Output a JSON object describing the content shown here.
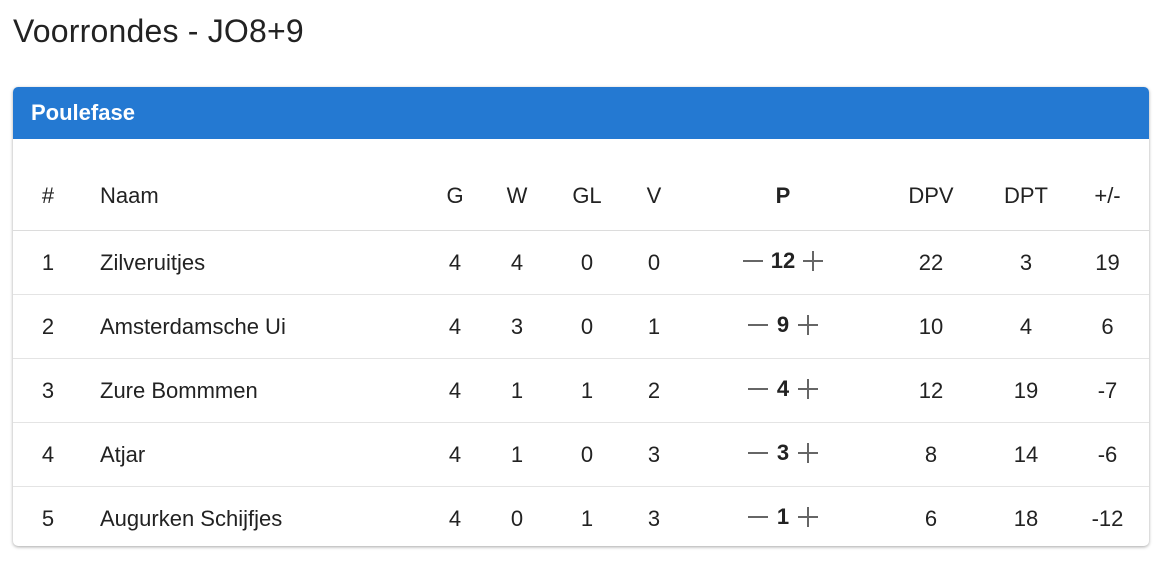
{
  "page": {
    "title": "Voorrondes - JO8+9"
  },
  "card": {
    "header": "Poulefase"
  },
  "table": {
    "headers": {
      "pos": "#",
      "name": "Naam",
      "g": "G",
      "w": "W",
      "gl": "GL",
      "v": "V",
      "p": "P",
      "dpv": "DPV",
      "dpt": "DPT",
      "diff": "+/-"
    },
    "rows": [
      {
        "pos": "1",
        "name": "Zilveruitjes",
        "g": "4",
        "w": "4",
        "gl": "0",
        "v": "0",
        "p": "12",
        "dpv": "22",
        "dpt": "3",
        "diff": "19"
      },
      {
        "pos": "2",
        "name": "Amsterdamsche Ui",
        "g": "4",
        "w": "3",
        "gl": "0",
        "v": "1",
        "p": "9",
        "dpv": "10",
        "dpt": "4",
        "diff": "6"
      },
      {
        "pos": "3",
        "name": "Zure Bommmen",
        "g": "4",
        "w": "1",
        "gl": "1",
        "v": "2",
        "p": "4",
        "dpv": "12",
        "dpt": "19",
        "diff": "-7"
      },
      {
        "pos": "4",
        "name": "Atjar",
        "g": "4",
        "w": "1",
        "gl": "0",
        "v": "3",
        "p": "3",
        "dpv": "8",
        "dpt": "14",
        "diff": "-6"
      },
      {
        "pos": "5",
        "name": "Augurken Schijfjes",
        "g": "4",
        "w": "0",
        "gl": "1",
        "v": "3",
        "p": "1",
        "dpv": "6",
        "dpt": "18",
        "diff": "-12"
      }
    ]
  },
  "icons": {
    "decrement": "minus-icon",
    "increment": "plus-icon"
  },
  "colors": {
    "header_bg": "#2479d2",
    "header_text": "#ffffff",
    "icon": "#666666"
  }
}
